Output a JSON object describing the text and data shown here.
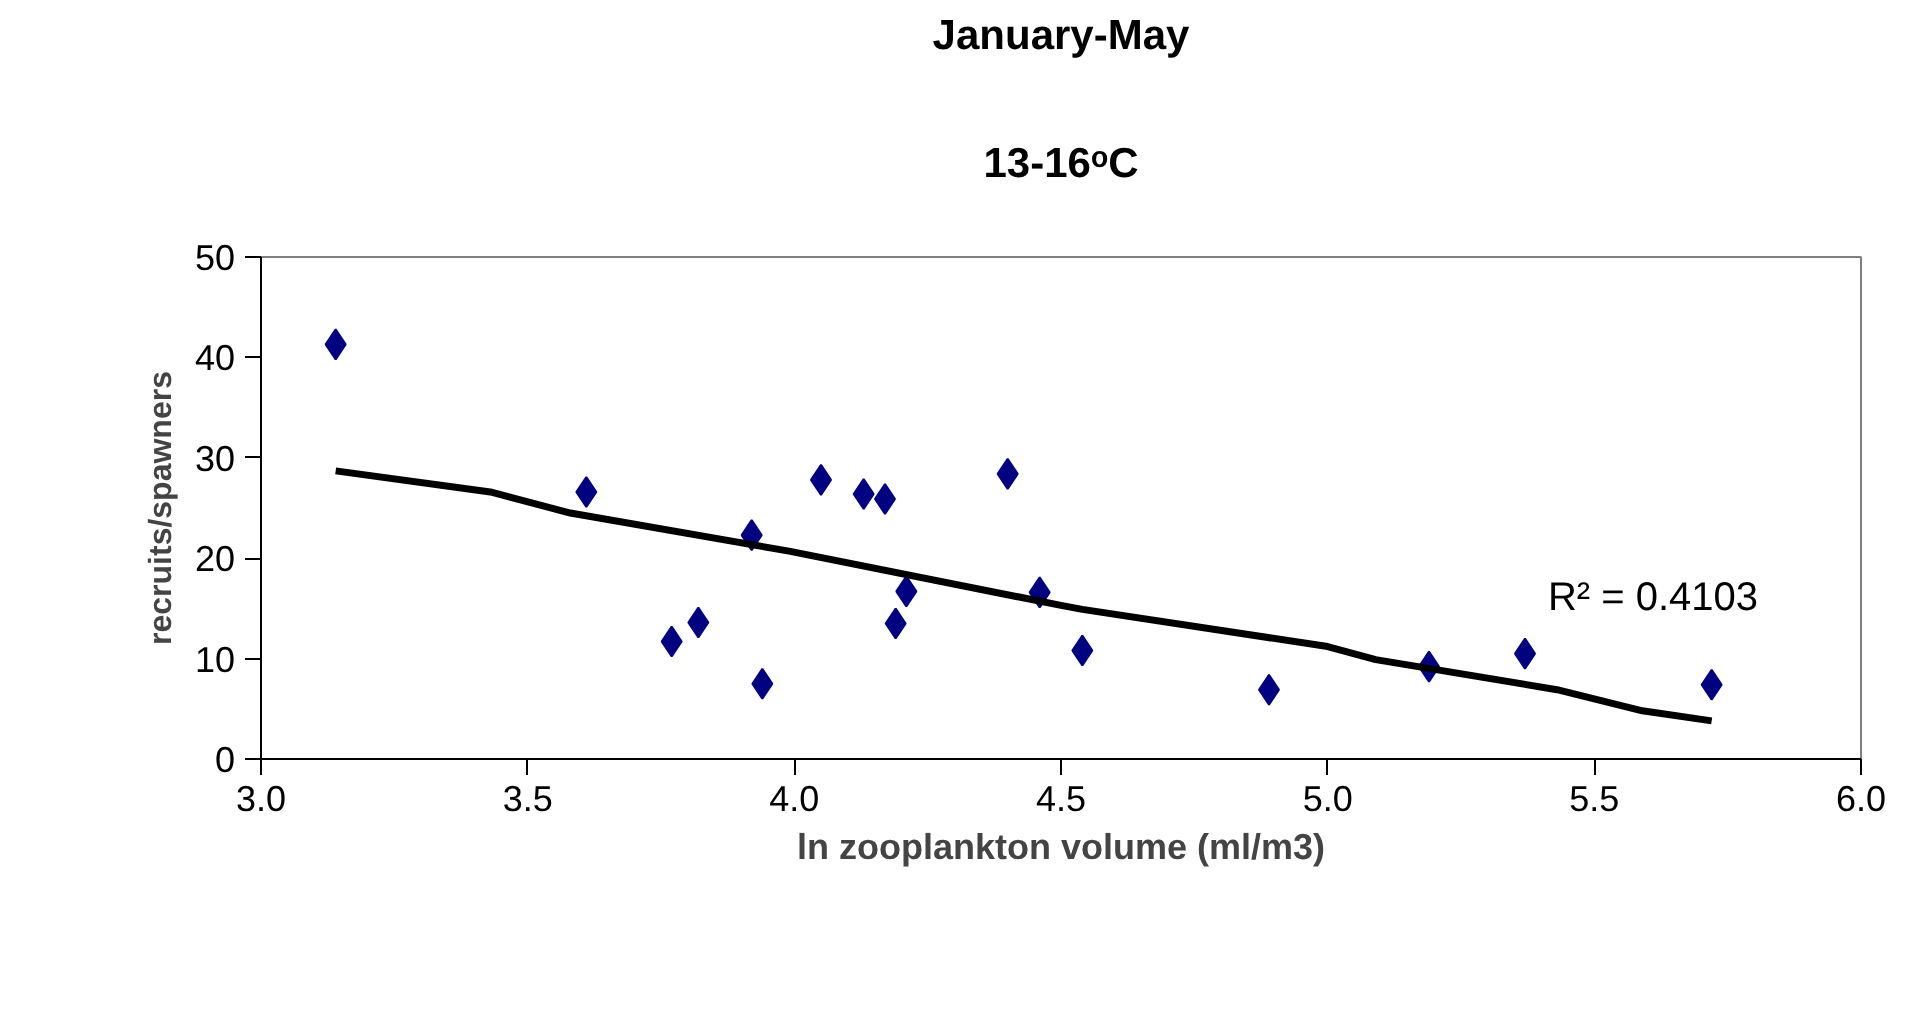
{
  "chart_data": {
    "type": "scatter",
    "title": "January-May",
    "subtitle": "13-16ᵒC",
    "xlabel": "ln zooplankton volume (ml/m3)",
    "ylabel": "recruits/spawners",
    "xlim": [
      3.0,
      6.0
    ],
    "ylim": [
      0,
      50
    ],
    "xticks": [
      {
        "value": 3.0,
        "label": "3.0"
      },
      {
        "value": 3.5,
        "label": "3.5"
      },
      {
        "value": 4.0,
        "label": "4.0"
      },
      {
        "value": 4.5,
        "label": "4.5"
      },
      {
        "value": 5.0,
        "label": "5.0"
      },
      {
        "value": 5.5,
        "label": "5.5"
      },
      {
        "value": 6.0,
        "label": "6.0"
      }
    ],
    "yticks": [
      0,
      10,
      20,
      30,
      40,
      50
    ],
    "grid": false,
    "marker": "diamond",
    "annotations": [
      "R² = 0.4103"
    ],
    "series": [
      {
        "color": "#000080",
        "x": [
          3.14,
          3.61,
          3.77,
          3.82,
          3.92,
          3.94,
          4.05,
          4.13,
          4.17,
          4.19,
          4.21,
          4.4,
          4.46,
          4.54,
          4.89,
          5.19,
          5.37,
          5.72
        ],
        "values": [
          41.3,
          26.6,
          11.7,
          13.6,
          22.3,
          7.5,
          27.8,
          26.4,
          25.9,
          13.5,
          16.7,
          28.4,
          16.6,
          10.8,
          6.9,
          9.2,
          10.5,
          7.4
        ]
      },
      {
        "type": "line",
        "color": "#000000",
        "marker": "none",
        "x": [
          3.14,
          3.43,
          3.58,
          3.99,
          4.5,
          4.54,
          5.0,
          5.09,
          5.43,
          5.59,
          5.72
        ],
        "values": [
          28.7,
          26.6,
          24.5,
          20.7,
          15.3,
          14.9,
          11.2,
          9.9,
          6.9,
          4.8,
          3.8
        ]
      }
    ]
  }
}
